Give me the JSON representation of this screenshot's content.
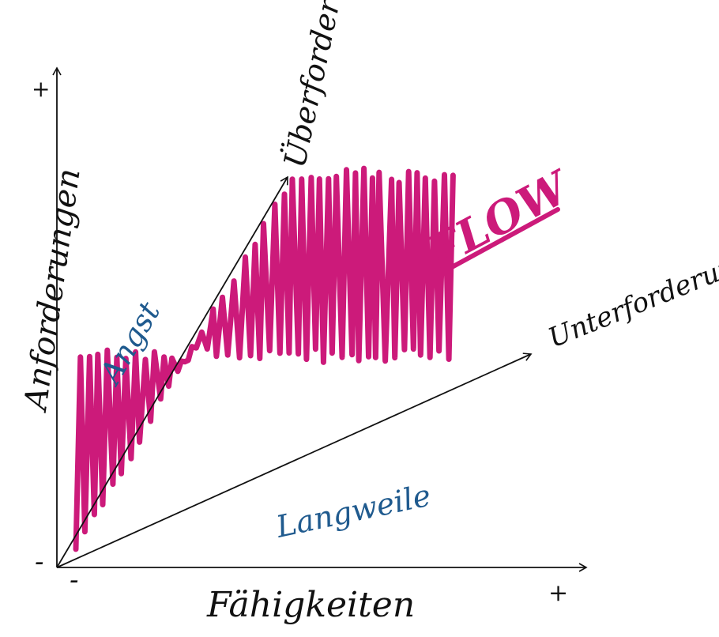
{
  "axes": {
    "x_label": "Fähigkeiten",
    "y_label": "Anforderungen",
    "x_plus": "+",
    "x_minus": "-",
    "y_plus": "+",
    "y_minus": "-"
  },
  "lines": {
    "upper": "Überforderung",
    "lower": "Unterforderung"
  },
  "zones": {
    "anxiety": "Angst",
    "flow": "FLOW",
    "boredom": "Langweile"
  },
  "colors": {
    "ink": "#111111",
    "zone_text": "#1f5a8e",
    "flow": "#cc1a7a"
  }
}
